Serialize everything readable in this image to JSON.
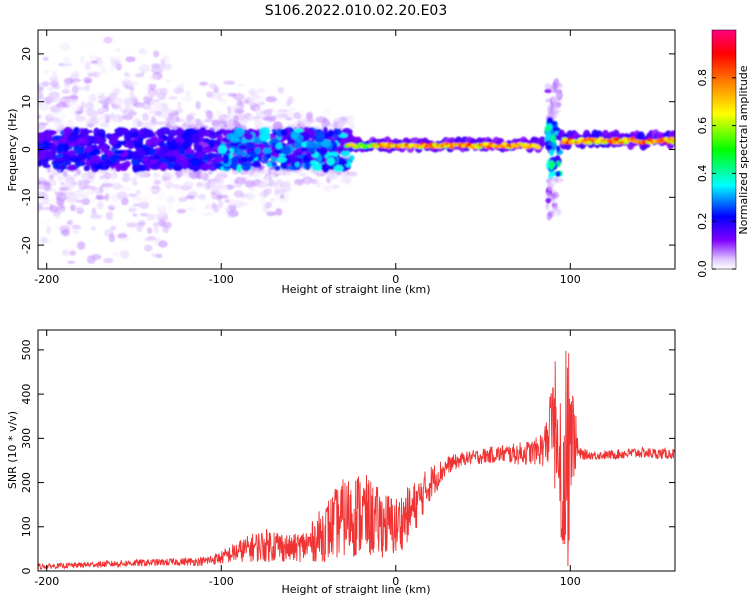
{
  "title": "S106.2022.010.02.20.E03",
  "colors": {
    "snr_line": "#f03232",
    "axis": "#000000",
    "spectrogram_background": "#ffffff"
  },
  "chart_data": [
    {
      "type": "heatmap",
      "xlabel": "Height of straight line (km)",
      "ylabel": "Frequency (Hz)",
      "xlim": [
        -205,
        160
      ],
      "ylim": [
        -25,
        25
      ],
      "x_ticks": [
        -200,
        -100,
        0,
        100
      ],
      "x_tick_labels": [
        "-200",
        "-100",
        "0",
        "100"
      ],
      "y_ticks": [
        -20,
        -10,
        0,
        10,
        20
      ],
      "y_tick_labels": [
        "-20",
        "-10",
        "0",
        "10",
        "20"
      ],
      "colorbar": {
        "label": "Normalized spectral amplitude",
        "range": [
          0,
          1
        ],
        "ticks": [
          0.0,
          0.2,
          0.4,
          0.6,
          0.8
        ],
        "tick_labels": [
          "0.0",
          "0.2",
          "0.4",
          "0.6",
          "0.8"
        ],
        "colormap": [
          "#ffffff",
          "#e0c8ff",
          "#8000ff",
          "#0000ff",
          "#00ffff",
          "#00ff00",
          "#ffff00",
          "#ff8000",
          "#ff0000",
          "#ff0080"
        ]
      },
      "features": [
        {
          "x_range": [
            -205,
            -30
          ],
          "freq_center": 0,
          "spread": 25,
          "amplitude": 0.1,
          "description_level": "noisy broadband"
        },
        {
          "x_range": [
            -30,
            80
          ],
          "freq_center": 1,
          "spread": 1,
          "amplitude": 0.85
        },
        {
          "x_range": [
            88,
            93
          ],
          "freq_center": 0,
          "spread": 12,
          "amplitude": 0.5
        },
        {
          "x_range": [
            95,
            160
          ],
          "freq_center": 2,
          "spread": 1.5,
          "amplitude": 0.85
        }
      ],
      "grid": false
    },
    {
      "type": "line",
      "xlabel": "Height of straight line (km)",
      "ylabel": "SNR (10 * v/v)",
      "xlim": [
        -205,
        160
      ],
      "ylim": [
        0,
        545
      ],
      "x_ticks": [
        -200,
        -100,
        0,
        100
      ],
      "x_tick_labels": [
        "-200",
        "-100",
        "0",
        "100"
      ],
      "y_ticks": [
        0,
        100,
        200,
        300,
        400,
        500
      ],
      "y_tick_labels": [
        "0",
        "100",
        "200",
        "300",
        "400",
        "500"
      ],
      "series": [
        {
          "x": [
            -205,
            -190,
            -170,
            -150,
            -130,
            -110,
            -100,
            -90,
            -80,
            -70,
            -60,
            -50,
            -40,
            -30,
            -20,
            -10,
            0,
            10,
            20,
            30,
            40,
            50,
            60,
            70,
            80,
            85,
            90,
            95,
            100,
            105,
            110,
            120,
            130,
            140,
            150,
            160
          ],
          "y": [
            10,
            12,
            15,
            18,
            20,
            22,
            30,
            45,
            55,
            60,
            50,
            60,
            90,
            120,
            130,
            110,
            100,
            140,
            200,
            240,
            255,
            260,
            265,
            265,
            270,
            280,
            330,
            150,
            330,
            265,
            262,
            262,
            265,
            268,
            265,
            265
          ],
          "noise": [
            6,
            6,
            7,
            8,
            8,
            10,
            15,
            25,
            35,
            40,
            30,
            40,
            70,
            90,
            100,
            80,
            70,
            60,
            40,
            20,
            15,
            18,
            20,
            25,
            30,
            45,
            100,
            120,
            150,
            15,
            10,
            10,
            12,
            12,
            12,
            12
          ]
        }
      ],
      "grid": false
    }
  ]
}
